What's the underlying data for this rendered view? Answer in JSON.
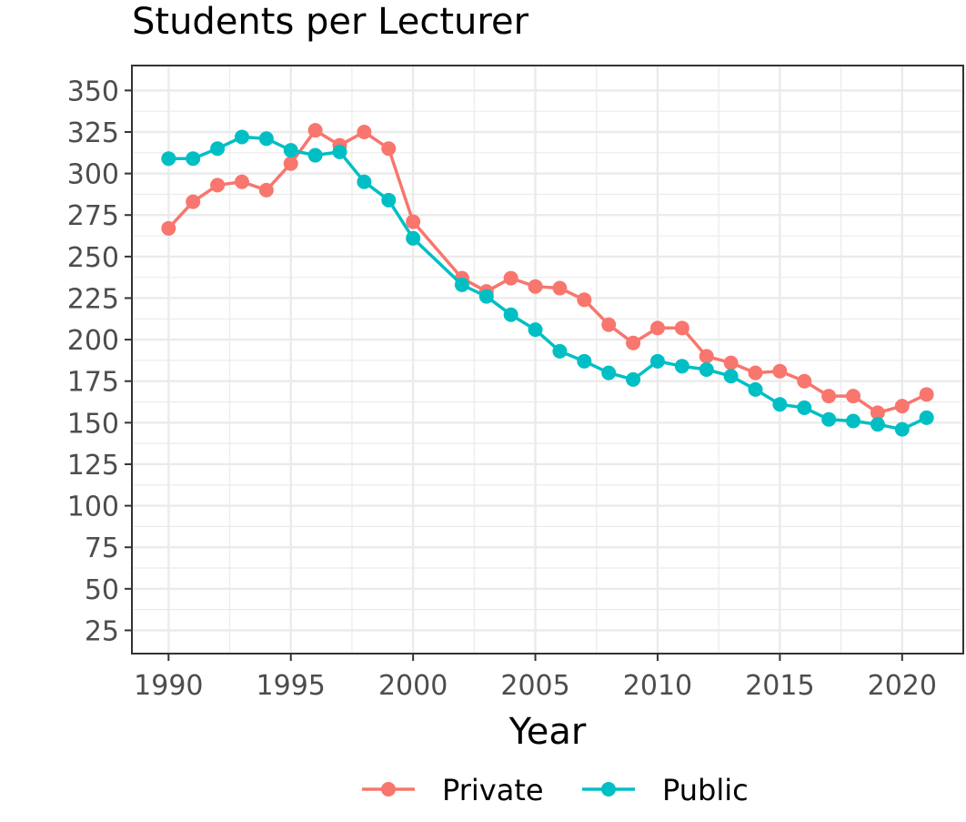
{
  "chart_data": {
    "type": "line",
    "title": "Students per Lecturer",
    "xlabel": "Year",
    "ylabel": "",
    "xlim": [
      1988.5,
      2022.5
    ],
    "ylim": [
      11,
      365
    ],
    "xticks": [
      1990,
      1995,
      2000,
      2005,
      2010,
      2015,
      2020
    ],
    "yticks": [
      25,
      50,
      75,
      100,
      125,
      150,
      175,
      200,
      225,
      250,
      275,
      300,
      325,
      350
    ],
    "grid": true,
    "legend_position": "bottom",
    "series": [
      {
        "name": "Private",
        "color": "#F8766D",
        "x": [
          1990,
          1991,
          1992,
          1993,
          1994,
          1995,
          1996,
          1997,
          1998,
          1999,
          2000,
          2002,
          2003,
          2004,
          2005,
          2006,
          2007,
          2008,
          2009,
          2010,
          2011,
          2012,
          2013,
          2014,
          2015,
          2016,
          2017,
          2018,
          2019,
          2020,
          2021
        ],
        "values": [
          267,
          283,
          293,
          295,
          290,
          306,
          326,
          317,
          325,
          315,
          271,
          237,
          229,
          237,
          232,
          231,
          224,
          209,
          198,
          207,
          207,
          190,
          186,
          180,
          181,
          175,
          166,
          166,
          156,
          160,
          167
        ]
      },
      {
        "name": "Public",
        "color": "#00BFC4",
        "x": [
          1990,
          1991,
          1992,
          1993,
          1994,
          1995,
          1996,
          1997,
          1998,
          1999,
          2000,
          2002,
          2003,
          2004,
          2005,
          2006,
          2007,
          2008,
          2009,
          2010,
          2011,
          2012,
          2013,
          2014,
          2015,
          2016,
          2017,
          2018,
          2019,
          2020,
          2021
        ],
        "values": [
          309,
          309,
          315,
          322,
          321,
          314,
          311,
          313,
          295,
          284,
          261,
          233,
          226,
          215,
          206,
          193,
          187,
          180,
          176,
          187,
          184,
          182,
          178,
          170,
          161,
          159,
          152,
          151,
          149,
          146,
          153
        ]
      }
    ]
  }
}
